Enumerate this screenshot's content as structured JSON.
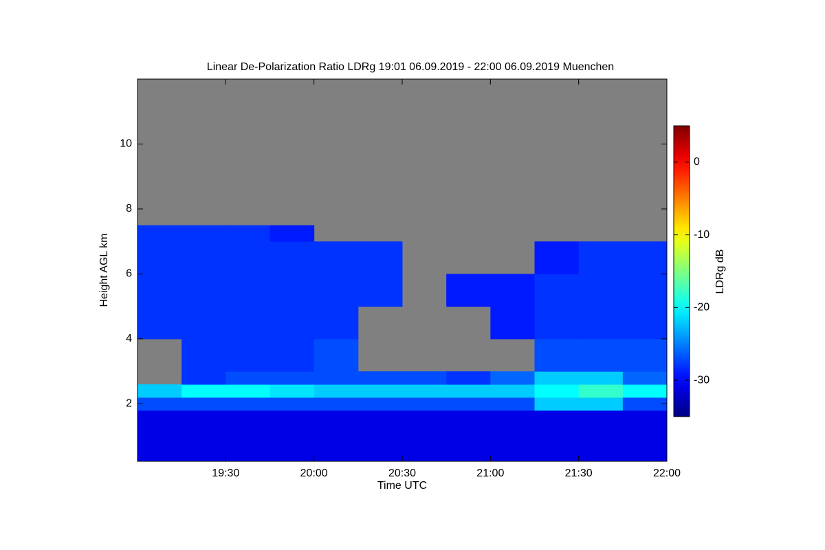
{
  "chart_data": {
    "type": "heatmap",
    "title": "Linear De-Polarization Ratio LDRg   19:01 06.09.2019 - 22:00 06.09.2019 Muenchen",
    "xlabel": "Time UTC",
    "ylabel": "Height AGL km",
    "zlabel": "LDRg dB",
    "xlim": [
      19.0,
      22.0
    ],
    "xticks": [
      {
        "value": 19.5,
        "label": "19:30"
      },
      {
        "value": 20.0,
        "label": "20:00"
      },
      {
        "value": 20.5,
        "label": "20:30"
      },
      {
        "value": 21.0,
        "label": "21:00"
      },
      {
        "value": 21.5,
        "label": "21:30"
      },
      {
        "value": 22.0,
        "label": "22:00"
      }
    ],
    "ylim": [
      0.23,
      12
    ],
    "yticks": [
      2,
      4,
      6,
      8,
      10
    ],
    "zlim": [
      -35,
      5
    ],
    "zticks": [
      0,
      -10,
      -20,
      -30
    ],
    "colormap": "jet",
    "nodata_color": "#808080",
    "x_bins": [
      19.0,
      19.25,
      19.5,
      19.75,
      20.0,
      20.25,
      20.5,
      20.75,
      21.0,
      21.25,
      21.5,
      21.75,
      22.0
    ],
    "y_bins": [
      0.23,
      1,
      1.8,
      2.2,
      2.6,
      3,
      4,
      5,
      6,
      7,
      7.5,
      12
    ],
    "z": [
      [
        -31,
        -31,
        -31,
        -31,
        -31,
        -31,
        -31,
        -31,
        -31,
        -31,
        -31,
        -31
      ],
      [
        -31,
        -31,
        -31,
        -31,
        -31,
        -31,
        -31,
        -31,
        -31,
        -31,
        -31,
        -31
      ],
      [
        -27,
        -27,
        -27,
        -27,
        -27,
        -27,
        -27,
        -27,
        -27,
        -22,
        -22,
        -27
      ],
      [
        -22,
        -20,
        -20,
        -21,
        -22,
        -22,
        -22,
        -22,
        -22,
        -20,
        -18,
        -20
      ],
      [
        null,
        -28,
        -27,
        -27,
        -27,
        -27,
        -27,
        -28,
        -26,
        -22,
        -22,
        -26
      ],
      [
        null,
        -28,
        -28,
        -28,
        -27,
        null,
        null,
        null,
        null,
        -27,
        -27,
        -27
      ],
      [
        -28,
        -28,
        -28,
        -28,
        -28,
        null,
        null,
        null,
        -29,
        -28,
        -28,
        -28
      ],
      [
        -28,
        -28,
        -28,
        -28,
        -28,
        -28,
        null,
        -29,
        -29,
        -28,
        -28,
        -28
      ],
      [
        -28,
        -28,
        -28,
        -28,
        -28,
        -28,
        null,
        null,
        null,
        -29,
        -28,
        -28
      ],
      [
        -28,
        -28,
        -28,
        -29,
        null,
        null,
        null,
        null,
        null,
        null,
        null,
        null
      ],
      [
        null,
        null,
        null,
        null,
        null,
        null,
        null,
        null,
        null,
        null,
        null,
        null
      ]
    ]
  }
}
